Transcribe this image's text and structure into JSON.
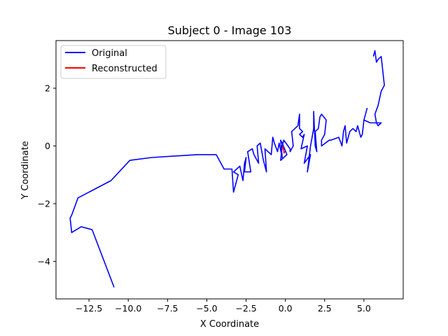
{
  "chart_data": {
    "type": "line",
    "title": "Subject 0 - Image 103",
    "xlabel": "X Coordinate",
    "ylabel": "Y Coordinate",
    "xlim": [
      -14.6,
      7.5
    ],
    "ylim": [
      -5.3,
      3.65
    ],
    "xticks": [
      -12.5,
      -10.0,
      -7.5,
      -5.0,
      -2.5,
      0.0,
      2.5,
      5.0
    ],
    "xtick_labels": [
      "−12.5",
      "−10.0",
      "−7.5",
      "−5.0",
      "−2.5",
      "0.0",
      "2.5",
      "5.0"
    ],
    "yticks": [
      -4,
      -2,
      0,
      2
    ],
    "ytick_labels": [
      "−4",
      "−2",
      "0",
      "2"
    ],
    "grid": false,
    "legend_position": "top-left",
    "series": [
      {
        "name": "Original",
        "color": "#0000ff",
        "points": [
          [
            -10.9,
            -4.9
          ],
          [
            -12.3,
            -2.9
          ],
          [
            -13.0,
            -2.8
          ],
          [
            -13.6,
            -3.0
          ],
          [
            -13.7,
            -2.5
          ],
          [
            -13.6,
            -2.4
          ],
          [
            -13.2,
            -1.8
          ],
          [
            -11.1,
            -1.2
          ],
          [
            -9.9,
            -0.5
          ],
          [
            -8.5,
            -0.4
          ],
          [
            -5.6,
            -0.3
          ],
          [
            -4.4,
            -0.3
          ],
          [
            -3.9,
            -0.8
          ],
          [
            -3.4,
            -0.8
          ],
          [
            -3.3,
            -1.6
          ],
          [
            -3.0,
            -1.0
          ],
          [
            -3.3,
            -0.9
          ],
          [
            -2.9,
            -0.7
          ],
          [
            -2.7,
            -1.2
          ],
          [
            -2.6,
            -0.6
          ],
          [
            -2.5,
            -0.4
          ],
          [
            -2.6,
            -0.9
          ],
          [
            -2.2,
            -0.9
          ],
          [
            -2.4,
            -0.2
          ],
          [
            -2.1,
            -0.1
          ],
          [
            -2.0,
            -0.3
          ],
          [
            -1.7,
            -0.6
          ],
          [
            -1.8,
            0.0
          ],
          [
            -1.6,
            0.1
          ],
          [
            -1.4,
            -0.5
          ],
          [
            -1.2,
            -0.9
          ],
          [
            -1.3,
            -0.1
          ],
          [
            -0.9,
            -0.3
          ],
          [
            -0.8,
            0.3
          ],
          [
            -0.7,
            0.1
          ],
          [
            -0.5,
            -0.2
          ],
          [
            -0.4,
            0.1
          ],
          [
            -0.2,
            -0.4
          ],
          [
            -0.3,
            0.2
          ],
          [
            -0.2,
            0.1
          ],
          [
            0.1,
            -0.3
          ],
          [
            -0.3,
            -0.5
          ],
          [
            -0.2,
            0.0
          ],
          [
            -0.1,
            0.2
          ],
          [
            0.3,
            -0.1
          ],
          [
            0.3,
            -0.2
          ],
          [
            0.5,
            0.0
          ],
          [
            0.4,
            0.5
          ],
          [
            0.8,
            0.7
          ],
          [
            0.9,
            1.1
          ],
          [
            0.9,
            0.6
          ],
          [
            1.1,
            0.5
          ],
          [
            0.9,
            0.4
          ],
          [
            1.1,
            0.3
          ],
          [
            1.2,
            0.4
          ],
          [
            1.0,
            -0.1
          ],
          [
            1.4,
            0.0
          ],
          [
            1.2,
            -0.6
          ],
          [
            1.6,
            -0.3
          ],
          [
            1.4,
            -0.9
          ],
          [
            1.6,
            0.0
          ],
          [
            1.8,
            0.6
          ],
          [
            1.8,
            1.2
          ],
          [
            1.9,
            0.0
          ],
          [
            2.0,
            -0.2
          ],
          [
            1.9,
            0.5
          ],
          [
            2.1,
            0.6
          ],
          [
            2.2,
            1.0
          ],
          [
            2.3,
            1.1
          ],
          [
            2.6,
            0.9
          ],
          [
            2.5,
            0.4
          ],
          [
            2.3,
            0.2
          ],
          [
            2.3,
            0.0
          ],
          [
            2.8,
            0.2
          ],
          [
            2.9,
            0.2
          ],
          [
            3.4,
            0.3
          ],
          [
            3.6,
            0.0
          ],
          [
            3.7,
            0.5
          ],
          [
            3.8,
            0.7
          ],
          [
            3.9,
            0.1
          ],
          [
            4.1,
            0.5
          ],
          [
            4.3,
            0.6
          ],
          [
            4.5,
            0.5
          ],
          [
            4.6,
            0.7
          ],
          [
            4.8,
            0.3
          ],
          [
            4.9,
            0.4
          ],
          [
            5.0,
            0.9
          ],
          [
            5.2,
            1.3
          ],
          [
            5.0,
            0.9
          ],
          [
            5.4,
            0.8
          ],
          [
            5.8,
            0.8
          ],
          [
            6.1,
            0.8
          ],
          [
            5.9,
            0.7
          ],
          [
            5.8,
            0.8
          ],
          [
            5.7,
            1.1
          ],
          [
            5.9,
            1.4
          ],
          [
            6.1,
            1.9
          ],
          [
            6.3,
            2.1
          ],
          [
            6.1,
            3.1
          ],
          [
            5.9,
            3.0
          ],
          [
            5.8,
            2.9
          ],
          [
            5.7,
            3.3
          ],
          [
            5.6,
            3.1
          ]
        ]
      },
      {
        "name": "Reconstructed",
        "color": "#ff0000",
        "points": [
          [
            -0.15,
            0.0
          ],
          [
            -0.12,
            -0.12
          ],
          [
            -0.08,
            -0.25
          ],
          [
            -0.05,
            -0.18
          ]
        ]
      }
    ]
  }
}
